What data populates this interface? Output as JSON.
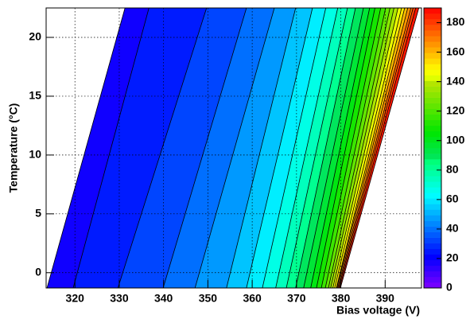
{
  "chart_data": {
    "type": "contour",
    "x_label": "Bias voltage (V)",
    "y_label": "Temperature (°C)",
    "xlim": [
      313.5,
      398.2
    ],
    "ylim": [
      -1.3,
      22.5
    ],
    "xticks": [
      320,
      330,
      340,
      350,
      360,
      370,
      380,
      390
    ],
    "yticks": [
      0,
      5,
      10,
      15,
      20
    ],
    "zlim": [
      0,
      190
    ],
    "zticks": [
      0,
      20,
      40,
      60,
      80,
      100,
      120,
      140,
      160,
      180
    ],
    "grid": true,
    "levels": [
      15,
      22,
      29,
      36,
      43,
      50,
      57,
      64,
      71,
      78,
      85,
      92,
      99,
      106,
      113,
      120,
      127,
      134,
      141,
      148,
      155,
      162,
      169,
      176,
      183,
      190
    ],
    "v_at_ymin": [
      313.7,
      319.6,
      329.7,
      339.9,
      347.1,
      354.2,
      358.7,
      362.3,
      365.3,
      367.7,
      369.8,
      371.6,
      373.2,
      374.5,
      375.6,
      376.5,
      377.2,
      377.7,
      378.2,
      378.6,
      379.0,
      379.1,
      379.3,
      379.5,
      379.7,
      379.9
    ],
    "v_at_ymax": [
      331.3,
      336.7,
      349.7,
      358.7,
      365.0,
      369.8,
      373.6,
      376.6,
      379.3,
      381.5,
      383.3,
      385.1,
      386.5,
      387.7,
      389.0,
      390.1,
      391.1,
      392.0,
      392.9,
      393.7,
      394.4,
      395.1,
      395.8,
      396.3,
      396.9,
      397.6
    ]
  }
}
